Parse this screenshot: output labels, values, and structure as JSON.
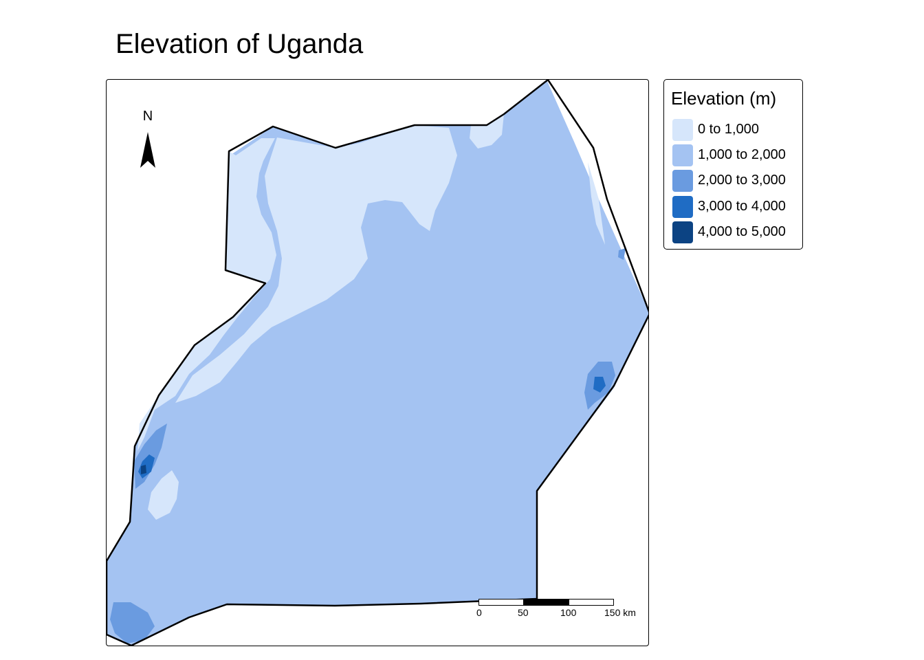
{
  "title": "Elevation of Uganda",
  "legend": {
    "title": "Elevation (m)",
    "items": [
      {
        "label": "0 to 1,000",
        "color": "#d6e6fb"
      },
      {
        "label": "1,000 to 2,000",
        "color": "#a4c3f2"
      },
      {
        "label": "2,000 to 3,000",
        "color": "#6a9be0"
      },
      {
        "label": "3,000 to 4,000",
        "color": "#1f6cc4"
      },
      {
        "label": "4,000 to 5,000",
        "color": "#0c4383"
      }
    ]
  },
  "north_arrow": {
    "label": "N"
  },
  "scale_bar": {
    "ticks": [
      "0",
      "50",
      "100",
      "150 km"
    ]
  },
  "colors": {
    "border": "#000000",
    "background": "#ffffff"
  }
}
